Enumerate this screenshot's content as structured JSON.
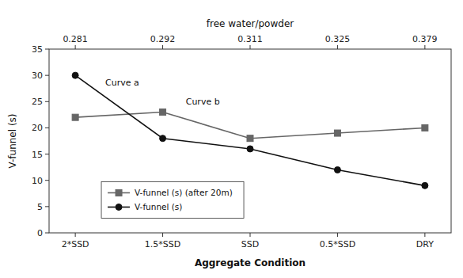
{
  "chart_data": {
    "type": "line",
    "x_label": "Aggregate Condition",
    "y_label": "V-funnel (s)",
    "top_axis_title": "free water/powder",
    "categories": [
      "2*SSD",
      "1.5*SSD",
      "SSD",
      "0.5*SSD",
      "DRY"
    ],
    "top_categories": [
      "0.281",
      "0.292",
      "0.311",
      "0.325",
      "0.379"
    ],
    "series": [
      {
        "name": "V-funnel (s) (after 20m)",
        "color": "#666666",
        "marker": "square",
        "values": [
          22.0,
          23.0,
          18.0,
          19.0,
          20.0
        ]
      },
      {
        "name": "V-funnel (s)",
        "color": "#111111",
        "marker": "circle",
        "values": [
          30.0,
          18.0,
          16.0,
          12.0,
          9.0
        ]
      }
    ],
    "annotations": [
      "Curve a",
      "Curve b"
    ],
    "ylim": [
      0,
      35
    ],
    "yticks": [
      0,
      5,
      10,
      15,
      20,
      25,
      30,
      35
    ],
    "grid": false,
    "legend": "lower left"
  }
}
